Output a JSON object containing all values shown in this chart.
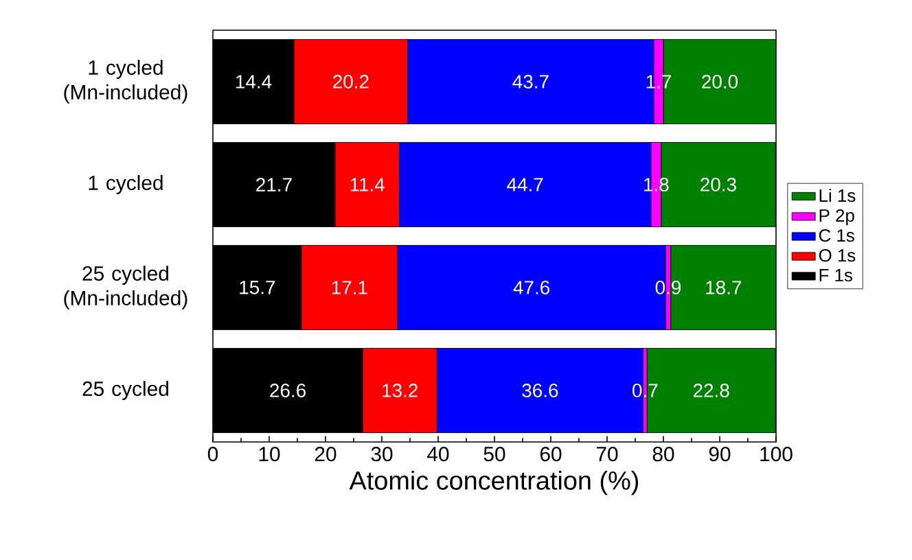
{
  "chart_data": {
    "type": "bar",
    "orientation": "horizontal",
    "stacked": true,
    "categories": [
      "1 cycled (Mn-included)",
      "1 cycled",
      "25 cycled (Mn-included)",
      "25 cycled"
    ],
    "series": [
      {
        "name": "F 1s",
        "color": "#000000",
        "values": [
          14.4,
          21.7,
          15.7,
          26.6
        ],
        "value_labels": [
          "14.4",
          "21.7",
          "15.7",
          "26.6"
        ]
      },
      {
        "name": "O 1s",
        "color": "#ff0000",
        "values": [
          20.2,
          11.4,
          17.1,
          13.2
        ],
        "value_labels": [
          "20.2",
          "11.4",
          "17.1",
          "13.2"
        ]
      },
      {
        "name": "C 1s",
        "color": "#0000ff",
        "values": [
          43.7,
          44.7,
          47.6,
          36.6
        ],
        "value_labels": [
          "43.7",
          "44.7",
          "47.6",
          "36.6"
        ]
      },
      {
        "name": "P 2p",
        "color": "#ff00ff",
        "values": [
          1.7,
          1.8,
          0.9,
          0.7
        ],
        "value_labels": [
          "1.7",
          "1.8",
          "0.9",
          "0.7"
        ]
      },
      {
        "name": "Li 1s",
        "color": "#008000",
        "values": [
          20.0,
          20.3,
          18.7,
          22.8
        ],
        "value_labels": [
          "20.0",
          "20.3",
          "18.7",
          "22.8"
        ]
      }
    ],
    "xlabel": "Atomic concentration (%)",
    "xlim": [
      0,
      100
    ],
    "xticks": [
      0,
      10,
      20,
      30,
      40,
      50,
      60,
      70,
      80,
      90,
      100
    ],
    "legend": "right",
    "grid": false
  }
}
